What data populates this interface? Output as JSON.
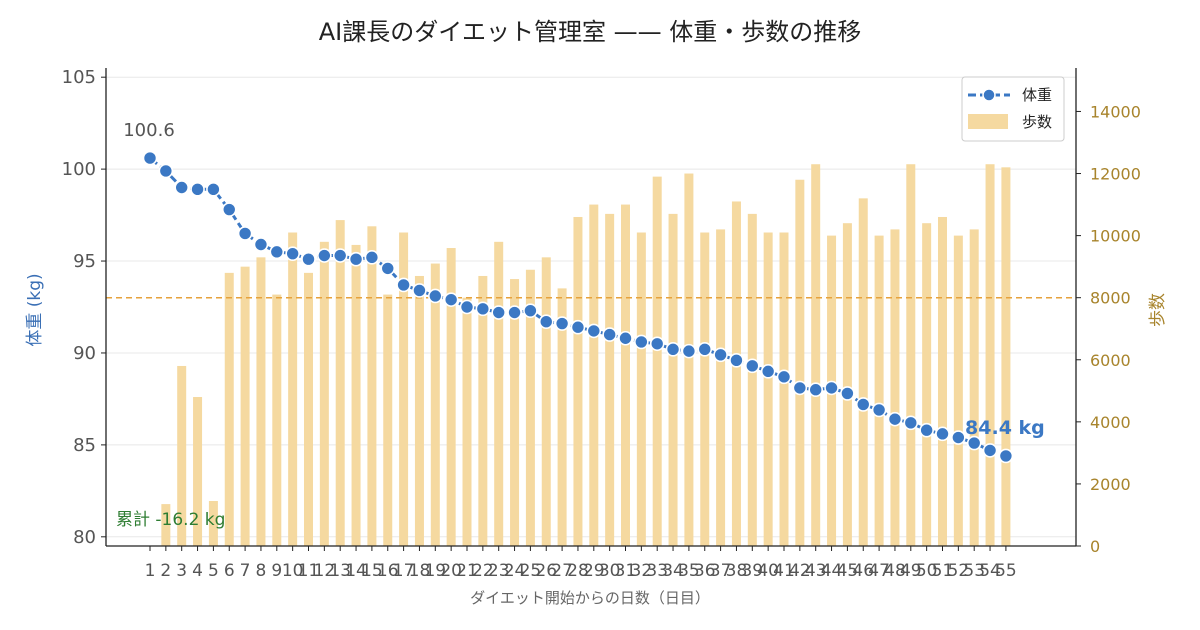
{
  "chart_data": {
    "type": "bar+line",
    "title": "AI課長のダイエット管理室 —— 体重・歩数の推移",
    "xlabel": "ダイエット開始からの日数（日目）",
    "ylabel_left": "体重 (kg)",
    "ylabel_right": "歩数",
    "x": [
      1,
      2,
      3,
      4,
      5,
      6,
      7,
      8,
      9,
      10,
      11,
      12,
      13,
      14,
      15,
      16,
      17,
      18,
      19,
      20,
      21,
      22,
      23,
      24,
      25,
      26,
      27,
      28,
      29,
      30,
      31,
      32,
      33,
      34,
      35,
      36,
      37,
      38,
      39,
      40,
      41,
      42,
      43,
      44,
      45,
      46,
      47,
      48,
      49,
      50,
      51,
      52,
      53,
      54,
      55
    ],
    "ylim_left": [
      79.5,
      105.5
    ],
    "yticks_left": [
      80,
      85,
      90,
      95,
      100,
      105
    ],
    "ylim_right": [
      0,
      15400
    ],
    "yticks_right": [
      0,
      2000,
      4000,
      6000,
      8000,
      10000,
      12000,
      14000
    ],
    "series": [
      {
        "name": "体重",
        "axis": "left",
        "kind": "line",
        "color": "#3b78c4",
        "values": [
          100.6,
          99.9,
          99.0,
          98.9,
          98.9,
          97.8,
          96.5,
          95.9,
          95.5,
          95.4,
          95.1,
          95.3,
          95.3,
          95.1,
          95.2,
          94.6,
          93.7,
          93.4,
          93.1,
          92.9,
          92.5,
          92.4,
          92.2,
          92.2,
          92.3,
          91.7,
          91.6,
          91.4,
          91.2,
          91.0,
          90.8,
          90.6,
          90.5,
          90.2,
          90.1,
          90.2,
          89.9,
          89.6,
          89.3,
          89.0,
          88.7,
          88.1,
          88.0,
          88.1,
          87.8,
          87.2,
          86.9,
          86.4,
          86.2,
          85.8,
          85.6,
          85.4,
          85.1,
          84.7,
          84.4
        ]
      },
      {
        "name": "歩数",
        "axis": "right",
        "kind": "bar",
        "color": "#f5d9a0",
        "values": [
          0,
          1350,
          5800,
          4800,
          1450,
          8800,
          9000,
          9300,
          8100,
          10100,
          8800,
          9800,
          10500,
          9700,
          10300,
          8100,
          10100,
          8700,
          9100,
          9600,
          8000,
          8700,
          9800,
          8600,
          8900,
          9300,
          8300,
          10600,
          11000,
          10700,
          11000,
          10100,
          11900,
          10700,
          12000,
          10100,
          10200,
          11100,
          10700,
          10100,
          10100,
          11800,
          12300,
          10000,
          10400,
          11200,
          10000,
          10200,
          12300,
          10400,
          10600,
          10000,
          10200,
          12300,
          12200
        ]
      }
    ],
    "reference_line": {
      "axis": "right",
      "value": 8000,
      "color": "#e6a23c"
    },
    "annotations": {
      "start_label": "100.6",
      "end_label": "84.4 kg",
      "total_label": "累計 -16.2 kg"
    },
    "legend": {
      "position": "top-right",
      "items": [
        "体重",
        "歩数"
      ]
    },
    "grid": true
  }
}
